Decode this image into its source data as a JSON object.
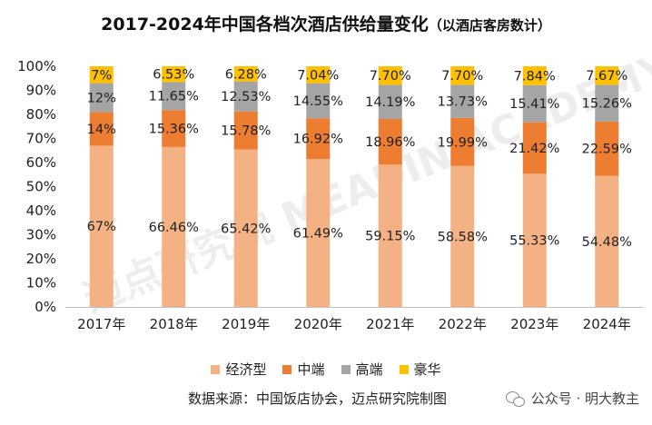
{
  "title": "2017-2024年中国各档次酒店供给量变化",
  "subtitle": "（以酒店客房数计）",
  "chart_data": {
    "type": "bar",
    "stacked": true,
    "percent": true,
    "categories": [
      "2017年",
      "2018年",
      "2019年",
      "2020年",
      "2021年",
      "2022年",
      "2023年",
      "2024年"
    ],
    "ylim": [
      0,
      100
    ],
    "yticks": [
      "0%",
      "10%",
      "20%",
      "30%",
      "40%",
      "50%",
      "60%",
      "70%",
      "80%",
      "90%",
      "100%"
    ],
    "series": [
      {
        "name": "经济型",
        "color": "#F4B183",
        "values": [
          67,
          66.46,
          65.42,
          61.49,
          59.15,
          58.58,
          55.33,
          54.48
        ],
        "labels": [
          "67%",
          "66.46%",
          "65.42%",
          "61.49%",
          "59.15%",
          "58.58%",
          "55.33%",
          "54.48%"
        ]
      },
      {
        "name": "中端",
        "color": "#ED7D31",
        "values": [
          14,
          15.36,
          15.78,
          16.92,
          18.96,
          19.99,
          21.42,
          22.59
        ],
        "labels": [
          "14%",
          "15.36%",
          "15.78%",
          "16.92%",
          "18.96%",
          "19.99%",
          "21.42%",
          "22.59%"
        ]
      },
      {
        "name": "高端",
        "color": "#A5A5A5",
        "values": [
          12,
          11.65,
          12.53,
          14.55,
          14.19,
          13.73,
          15.41,
          15.26
        ],
        "labels": [
          "12%",
          "11.65%",
          "12.53%",
          "14.55%",
          "14.19%",
          "13.73%",
          "15.41%",
          "15.26%"
        ]
      },
      {
        "name": "豪华",
        "color": "#FFC000",
        "values": [
          7,
          6.53,
          6.28,
          7.04,
          7.7,
          7.7,
          7.84,
          7.67
        ],
        "labels": [
          "7%",
          "6.53%",
          "6.28%",
          "7.04%",
          "7.70%",
          "7.70%",
          "7.84%",
          "7.67%"
        ]
      }
    ],
    "legend": "bottom",
    "grid": false
  },
  "source": "数据来源：中国饭店协会，迈点研究院制图",
  "watermark": "迈点研究院 MEADIN ACADEMY",
  "account": "公众号 · 明大教主",
  "icons": {
    "wechat": "wechat-icon"
  }
}
